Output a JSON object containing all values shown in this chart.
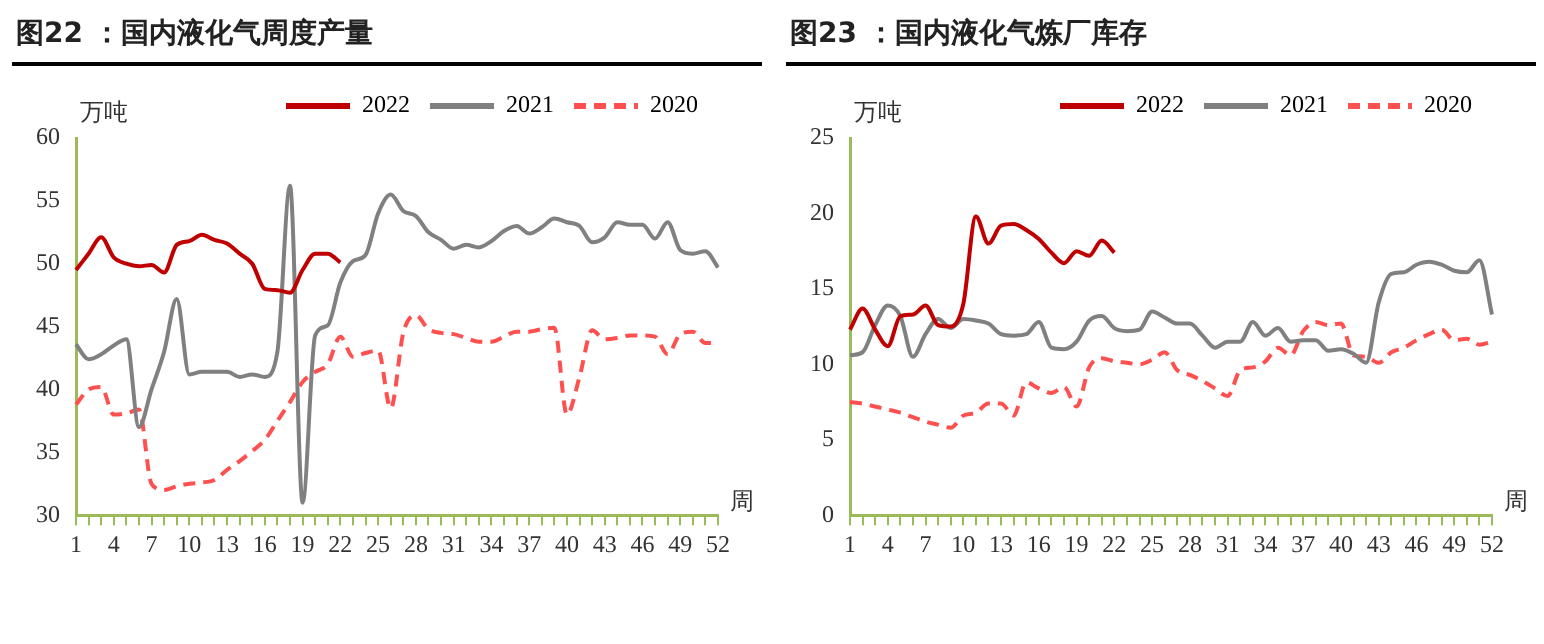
{
  "chart_data": [
    {
      "type": "line",
      "title": "图22 ：国内液化气周度产量",
      "ylabel": "万吨",
      "xlabel": "周",
      "categories": [
        "1",
        null,
        null,
        "4",
        null,
        null,
        "7",
        null,
        null,
        "10",
        null,
        null,
        "13",
        null,
        null,
        "16",
        null,
        null,
        "19",
        null,
        null,
        "22",
        null,
        null,
        "25",
        null,
        null,
        "28",
        null,
        null,
        "31",
        null,
        null,
        "34",
        null,
        null,
        "37",
        null,
        null,
        "40",
        null,
        null,
        "43",
        null,
        null,
        "46",
        null,
        null,
        "49",
        null,
        null,
        "52"
      ],
      "ylim": [
        30,
        60
      ],
      "yticks": [
        30,
        35,
        40,
        45,
        50,
        55,
        60
      ],
      "legend": "top",
      "marker": "none",
      "grid": false,
      "series": [
        {
          "name": "2022",
          "color": "#c00000",
          "line_style": "solid",
          "values": [
            49.5,
            50.8,
            52.1,
            50.5,
            50.0,
            49.8,
            49.9,
            49.3,
            51.5,
            51.8,
            52.3,
            51.9,
            51.6,
            50.8,
            50.0,
            48.0,
            47.9,
            47.7,
            49.5,
            50.8,
            50.8,
            50.1,
            null,
            null,
            null,
            null,
            null,
            null,
            null,
            null,
            null,
            null,
            null,
            null,
            null,
            null,
            null,
            null,
            null,
            null,
            null,
            null,
            null,
            null,
            null,
            null,
            null,
            null,
            null,
            null,
            null,
            null
          ]
        },
        {
          "name": "2021",
          "color": "#808080",
          "line_style": "solid",
          "values": [
            43.6,
            42.4,
            42.8,
            43.5,
            44.0,
            37.0,
            40,
            43,
            47.2,
            41.2,
            41.4,
            41.4,
            41.4,
            41.0,
            41.2,
            41.0,
            43,
            56.2,
            31,
            44.3,
            45.1,
            48.5,
            50.2,
            50.7,
            54,
            55.5,
            54.2,
            53.8,
            52.5,
            51.9,
            51.2,
            51.5,
            51.3,
            51.8,
            52.6,
            53,
            52.4,
            52.9,
            53.6,
            53.3,
            53,
            51.7,
            52.1,
            53.3,
            53.1,
            53.1,
            52,
            53.3,
            51.1,
            50.8,
            51,
            49.7
          ]
        },
        {
          "name": "2020",
          "color": "#ff5050",
          "line_style": "dashed",
          "values": [
            38.8,
            40,
            40.2,
            38,
            38.1,
            38.4,
            32.5,
            32,
            32.3,
            32.5,
            32.6,
            32.8,
            33.6,
            34.3,
            35.1,
            36,
            37.5,
            39,
            40.6,
            41.4,
            42,
            44.2,
            42.6,
            42.9,
            43.1,
            38.5,
            44.5,
            45.9,
            44.8,
            44.5,
            44.4,
            44.1,
            43.8,
            43.8,
            44.2,
            44.6,
            44.6,
            44.8,
            44.9,
            38,
            41,
            44.7,
            44,
            44.1,
            44.3,
            44.3,
            44.2,
            42.8,
            44.4,
            44.6,
            43.7,
            43.7
          ]
        }
      ]
    },
    {
      "type": "line",
      "title": "图23 ：国内液化气炼厂库存",
      "ylabel": "万吨",
      "xlabel": "周",
      "categories": [
        "1",
        null,
        null,
        "4",
        null,
        null,
        "7",
        null,
        null,
        "10",
        null,
        null,
        "13",
        null,
        null,
        "16",
        null,
        null,
        "19",
        null,
        null,
        "22",
        null,
        null,
        "25",
        null,
        null,
        "28",
        null,
        null,
        "31",
        null,
        null,
        "34",
        null,
        null,
        "37",
        null,
        null,
        "40",
        null,
        null,
        "43",
        null,
        null,
        "46",
        null,
        null,
        "49",
        null,
        null,
        "52"
      ],
      "ylim": [
        0,
        25
      ],
      "yticks": [
        0,
        5,
        10,
        15,
        20,
        25
      ],
      "legend": "top",
      "marker": "none",
      "grid": false,
      "series": [
        {
          "name": "2022",
          "color": "#c00000",
          "line_style": "solid",
          "values": [
            12.3,
            13.7,
            12.3,
            11.2,
            13.2,
            13.3,
            13.9,
            12.6,
            12.5,
            14,
            19.8,
            18,
            19.2,
            19.3,
            18.9,
            18.3,
            17.4,
            16.7,
            17.5,
            17.2,
            18.2,
            17.4,
            null,
            null,
            null,
            null,
            null,
            null,
            null,
            null,
            null,
            null,
            null,
            null,
            null,
            null,
            null,
            null,
            null,
            null,
            null,
            null,
            null,
            null,
            null,
            null,
            null,
            null,
            null,
            null,
            null,
            null
          ]
        },
        {
          "name": "2021",
          "color": "#808080",
          "line_style": "solid",
          "values": [
            10.6,
            10.8,
            12.6,
            13.9,
            13.2,
            10.5,
            12,
            13,
            12.4,
            13,
            12.9,
            12.7,
            12,
            11.9,
            12,
            12.8,
            11.1,
            11.0,
            11.5,
            12.9,
            13.2,
            12.4,
            12.2,
            12.3,
            13.5,
            13.1,
            12.7,
            12.7,
            11.9,
            11.1,
            11.5,
            11.5,
            12.8,
            11.9,
            12.4,
            11.5,
            11.6,
            11.6,
            10.9,
            11,
            10.7,
            10.1,
            14.1,
            16,
            16.1,
            16.6,
            16.8,
            16.6,
            16.2,
            16.1,
            16.9,
            13.3
          ]
        },
        {
          "name": "2020",
          "color": "#ff5050",
          "line_style": "dashed",
          "values": [
            7.5,
            7.4,
            7.2,
            7,
            6.8,
            6.5,
            6.2,
            6,
            5.8,
            6.6,
            6.8,
            7.4,
            7.4,
            6.6,
            8.8,
            8.4,
            8.1,
            8.5,
            7.2,
            9.8,
            10.4,
            10.2,
            10.1,
            10,
            10.3,
            10.8,
            9.6,
            9.3,
            8.9,
            8.4,
            7.9,
            9.6,
            9.8,
            10.2,
            11.1,
            10.6,
            12.2,
            12.8,
            12.6,
            12.7,
            10.6,
            10.5,
            10.1,
            10.8,
            11.1,
            11.6,
            12,
            12.3,
            11.6,
            11.7,
            11.3,
            11.5
          ]
        }
      ]
    }
  ]
}
